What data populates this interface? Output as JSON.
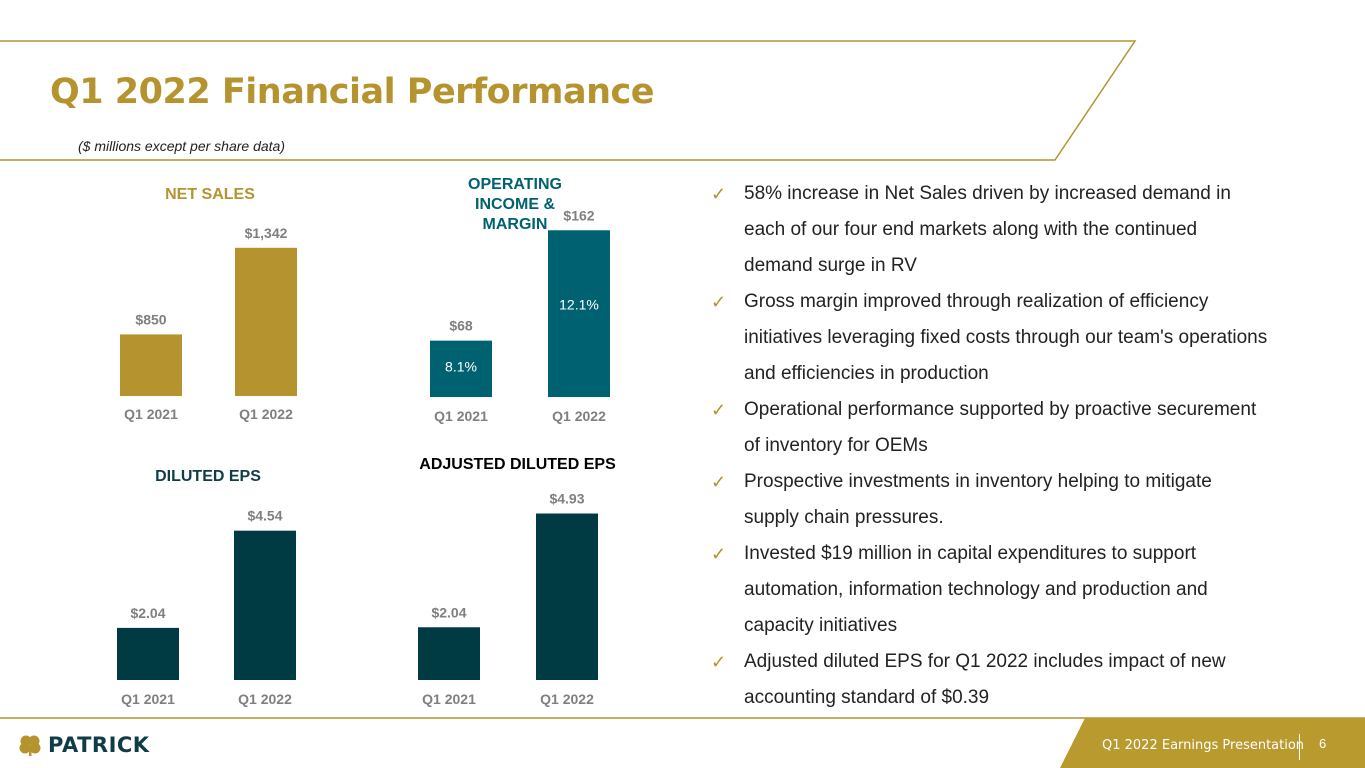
{
  "page": {
    "title": "Q1 2022 Financial Performance",
    "subtitle": "($ millions except per share data)"
  },
  "colors": {
    "gold": "#b5942f",
    "teal": "#006270",
    "dark_teal": "#003b44",
    "gray_text": "#7f7f7f",
    "footer_gold": "#b89a2f"
  },
  "chart_data": [
    {
      "id": "net_sales",
      "type": "bar",
      "title": "NET SALES",
      "categories": [
        "Q1 2021",
        "Q1 2022"
      ],
      "values": [
        850,
        1342
      ],
      "value_labels": [
        "$850",
        "$1,342"
      ],
      "color": "#b5942f",
      "title_color": "#b5942f",
      "ylim": [
        500,
        1500
      ]
    },
    {
      "id": "operating_income",
      "type": "bar",
      "title": "OPERATING INCOME & MARGIN",
      "categories": [
        "Q1 2021",
        "Q1 2022"
      ],
      "values": [
        68,
        162
      ],
      "value_labels": [
        "$68",
        "$162"
      ],
      "inner_labels": [
        "8.1%",
        "12.1%"
      ],
      "color": "#006270",
      "title_color": "#006270",
      "ylim": [
        20,
        175
      ]
    },
    {
      "id": "diluted_eps",
      "type": "bar",
      "title": "DILUTED EPS",
      "categories": [
        "Q1 2021",
        "Q1 2022"
      ],
      "values": [
        2.04,
        4.54
      ],
      "value_labels": [
        "$2.04",
        "$4.54"
      ],
      "color": "#003b44",
      "title_color": "#0f3d46",
      "ylim": [
        0.7,
        5.2
      ]
    },
    {
      "id": "adjusted_diluted_eps",
      "type": "bar",
      "title": "ADJUSTED DILUTED EPS",
      "categories": [
        "Q1 2021",
        "Q1 2022"
      ],
      "values": [
        2.04,
        4.93
      ],
      "value_labels": [
        "$2.04",
        "$4.93"
      ],
      "color": "#003b44",
      "title_color": "#000000",
      "ylim": [
        0.7,
        5.4
      ]
    }
  ],
  "bullets": [
    "58% increase in Net Sales driven by increased demand in each of our four end markets along with the continued demand surge in RV",
    "Gross margin improved through realization of efficiency initiatives leveraging fixed costs through our team's operations and efficiencies in production",
    "Operational performance supported by proactive securement of inventory for OEMs",
    "Prospective investments in inventory helping to mitigate supply chain pressures.",
    "Invested $19 million in capital expenditures to support automation, information technology and production and capacity initiatives",
    "Adjusted diluted EPS for Q1 2022 includes impact of new accounting standard of $0.39"
  ],
  "bullet_lines": [
    [
      "58% increase in Net Sales driven by increased demand in",
      "each of our four end markets along with the continued",
      "demand surge in RV"
    ],
    [
      "Gross margin improved through realization of efficiency",
      "initiatives leveraging fixed costs through our team's operations",
      "and efficiencies in production"
    ],
    [
      "Operational performance supported by proactive securement",
      "of inventory for OEMs"
    ],
    [
      "Prospective investments in inventory helping to mitigate",
      "supply chain pressures."
    ],
    [
      "Invested $19 million in capital expenditures to support",
      "automation, information technology and production and",
      "capacity initiatives"
    ],
    [
      "Adjusted diluted EPS for Q1 2022 includes impact of new",
      "accounting standard of $0.39"
    ]
  ],
  "footer": {
    "logo_text": "PATRICK",
    "presentation": "Q1 2022 Earnings Presentation",
    "page_number": "6",
    "logo_icon": "shamrock-icon"
  }
}
